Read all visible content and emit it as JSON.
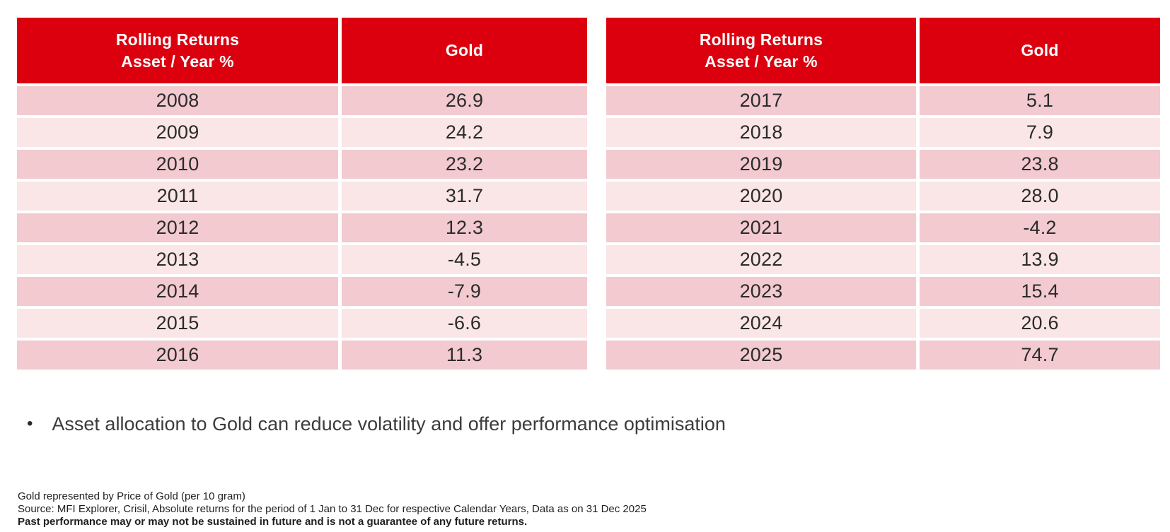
{
  "colors": {
    "page_bg": "#FFFFFF",
    "header_red": "#DC000F",
    "header_text": "#FFFFFF",
    "row_dark": "#F2CAD0",
    "row_light": "#FAE6E7",
    "cell_text": "#2B2B2B"
  },
  "tables": [
    {
      "name": "rolling-returns-2008-2016",
      "columns": [
        "Rolling Returns\nAsset / Year %",
        "Gold"
      ],
      "rows": [
        {
          "year": "2008",
          "gold": "26.9"
        },
        {
          "year": "2009",
          "gold": "24.2"
        },
        {
          "year": "2010",
          "gold": "23.2"
        },
        {
          "year": "2011",
          "gold": "31.7"
        },
        {
          "year": "2012",
          "gold": "12.3"
        },
        {
          "year": "2013",
          "gold": "-4.5"
        },
        {
          "year": "2014",
          "gold": "-7.9"
        },
        {
          "year": "2015",
          "gold": "-6.6"
        },
        {
          "year": "2016",
          "gold": "11.3"
        }
      ]
    },
    {
      "name": "rolling-returns-2017-2025",
      "columns": [
        "Rolling Returns\nAsset / Year %",
        "Gold"
      ],
      "rows": [
        {
          "year": "2017",
          "gold": "5.1"
        },
        {
          "year": "2018",
          "gold": "7.9"
        },
        {
          "year": "2019",
          "gold": "23.8"
        },
        {
          "year": "2020",
          "gold": "28.0"
        },
        {
          "year": "2021",
          "gold": "-4.2"
        },
        {
          "year": "2022",
          "gold": "13.9"
        },
        {
          "year": "2023",
          "gold": "15.4"
        },
        {
          "year": "2024",
          "gold": "20.6"
        },
        {
          "year": "2025",
          "gold": "74.7"
        }
      ]
    }
  ],
  "bullet": {
    "marker": "•",
    "text": "Asset allocation to Gold can reduce volatility and offer performance optimisation"
  },
  "footnotes": [
    {
      "text": "Gold represented by Price of Gold (per 10 gram)",
      "bold": false
    },
    {
      "text": "Source: MFI Explorer, Crisil, Absolute returns for the period of 1 Jan to 31 Dec for respective Calendar Years, Data as on 31 Dec 2025",
      "bold": false
    },
    {
      "text": "Past performance may or may not be sustained in future and is not a guarantee of any future returns.",
      "bold": true
    }
  ],
  "chart_data": {
    "type": "table",
    "title": "Rolling Returns Asset / Year % — Gold",
    "series": [
      {
        "name": "Gold",
        "x": [
          2008,
          2009,
          2010,
          2011,
          2012,
          2013,
          2014,
          2015,
          2016,
          2017,
          2018,
          2019,
          2020,
          2021,
          2022,
          2023,
          2024,
          2025
        ],
        "values": [
          26.9,
          24.2,
          23.2,
          31.7,
          12.3,
          -4.5,
          -7.9,
          -6.6,
          11.3,
          5.1,
          7.9,
          23.8,
          28.0,
          -4.2,
          13.9,
          15.4,
          20.6,
          74.7
        ]
      }
    ]
  }
}
